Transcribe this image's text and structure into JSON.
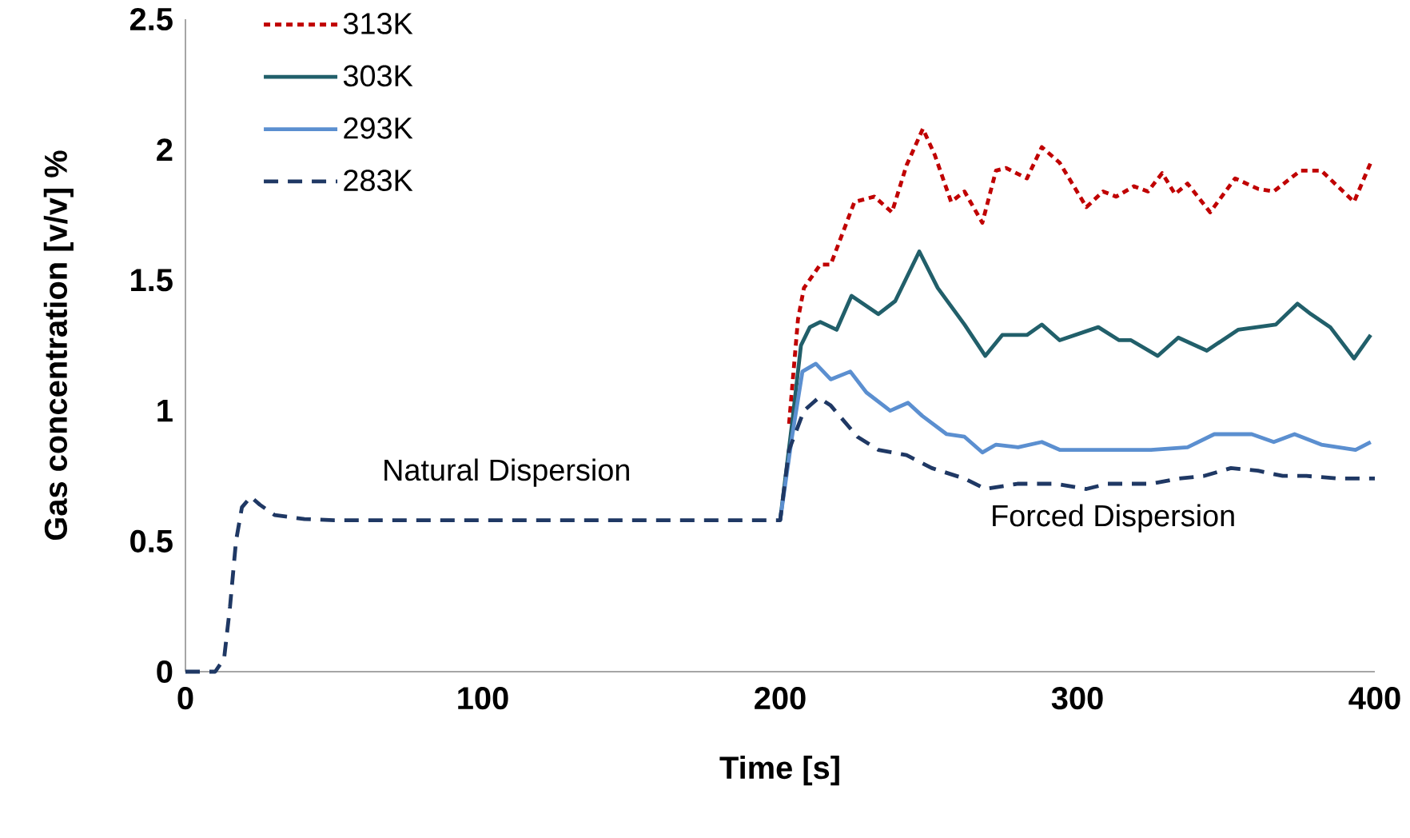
{
  "chart_data": {
    "type": "line",
    "xlabel": "Time [s]",
    "ylabel": "Gas concentration [v/v] %",
    "xlim": [
      0,
      400
    ],
    "xticks": [
      0,
      100,
      200,
      300,
      400
    ],
    "ylim": [
      0,
      2.5
    ],
    "yticks": [
      0,
      0.5,
      1,
      1.5,
      2,
      2.5
    ],
    "grid": false,
    "legend": "top left",
    "marker": "none",
    "annotations": [
      "Natural Dispersion",
      "Forced Dispersion"
    ],
    "series": [
      {
        "name": "313K",
        "color": "#c00000",
        "line_style": "dotted",
        "x": [
          203,
          206,
          208,
          213.5,
          217,
          225,
          231.7,
          237.6,
          242.5,
          248,
          252,
          257.5,
          262,
          268,
          272.6,
          276,
          283,
          288,
          294,
          303,
          308.6,
          313,
          319,
          323.7,
          328.5,
          332.8,
          337,
          344.6,
          353,
          360.7,
          366,
          375,
          382,
          393,
          398.6
        ],
        "values": [
          0.95,
          1.35,
          1.47,
          1.56,
          1.56,
          1.8,
          1.82,
          1.76,
          1.94,
          2.08,
          1.98,
          1.8,
          1.84,
          1.72,
          1.92,
          1.93,
          1.89,
          2.01,
          1.95,
          1.78,
          1.84,
          1.82,
          1.86,
          1.84,
          1.91,
          1.83,
          1.87,
          1.76,
          1.89,
          1.85,
          1.84,
          1.92,
          1.92,
          1.8,
          1.95
        ]
      },
      {
        "name": "303K",
        "color": "#215f6a",
        "line_style": "solid",
        "x": [
          200,
          204,
          207,
          210,
          213.5,
          219,
          224,
          233,
          238.7,
          246.8,
          253,
          262,
          269,
          274.7,
          283,
          288,
          294,
          307,
          314,
          318,
          327,
          333.9,
          343.5,
          354,
          366.7,
          374,
          378.5,
          385,
          393,
          398.6
        ],
        "values": [
          0.58,
          0.95,
          1.25,
          1.32,
          1.34,
          1.31,
          1.44,
          1.37,
          1.42,
          1.61,
          1.47,
          1.33,
          1.21,
          1.29,
          1.29,
          1.33,
          1.27,
          1.32,
          1.27,
          1.27,
          1.21,
          1.28,
          1.23,
          1.31,
          1.33,
          1.41,
          1.37,
          1.32,
          1.2,
          1.29
        ]
      },
      {
        "name": "293K",
        "color": "#5b8fd0",
        "line_style": "solid",
        "x": [
          200,
          204,
          207.5,
          212,
          217,
          223.6,
          229,
          237,
          243,
          247.8,
          256,
          262,
          268,
          272.6,
          280,
          288,
          294,
          307,
          324.7,
          337,
          346,
          353,
          358.6,
          366,
          373,
          382,
          393.5,
          398.6
        ],
        "values": [
          0.58,
          0.9,
          1.15,
          1.18,
          1.12,
          1.15,
          1.07,
          1.0,
          1.03,
          0.98,
          0.91,
          0.9,
          0.84,
          0.87,
          0.86,
          0.88,
          0.85,
          0.85,
          0.85,
          0.86,
          0.91,
          0.91,
          0.91,
          0.88,
          0.91,
          0.87,
          0.85,
          0.88
        ]
      },
      {
        "name": "283K",
        "color": "#1f3864",
        "line_style": "dashed",
        "x": [
          0,
          10,
          13,
          15,
          17,
          19,
          22,
          25,
          30,
          40,
          50,
          200,
          203,
          208,
          213,
          217,
          226,
          233,
          242.5,
          251,
          262,
          269,
          280,
          292.5,
          303,
          310,
          324.7,
          334,
          342.5,
          351.6,
          360.7,
          369,
          377,
          387.6,
          394.6,
          400
        ],
        "values": [
          0,
          0,
          0.05,
          0.25,
          0.5,
          0.63,
          0.67,
          0.64,
          0.6,
          0.585,
          0.58,
          0.58,
          0.85,
          1.0,
          1.05,
          1.02,
          0.9,
          0.85,
          0.83,
          0.78,
          0.74,
          0.7,
          0.72,
          0.72,
          0.7,
          0.72,
          0.72,
          0.74,
          0.75,
          0.78,
          0.77,
          0.75,
          0.75,
          0.74,
          0.74,
          0.74
        ]
      }
    ]
  }
}
